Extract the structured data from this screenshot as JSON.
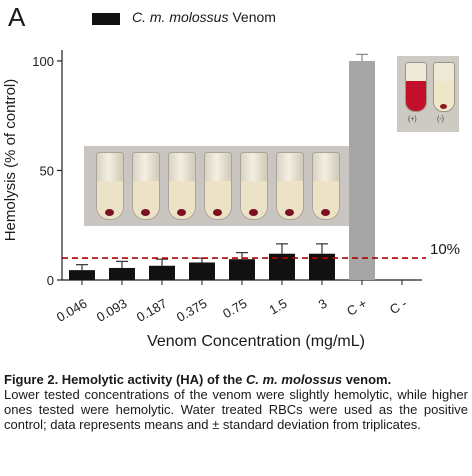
{
  "panel_label": "A",
  "legend": {
    "label_italic": "C. m. molossus",
    "label_rest": " Venom",
    "color": "#111111"
  },
  "threshold_label": "10%",
  "photo_controls": {
    "pos_label": "(+)",
    "neg_label": "(-)"
  },
  "caption": {
    "bold_prefix": "Figure 2. Hemolytic activity (HA) of the ",
    "bold_italic": "C. m. molossus",
    "bold_suffix": " venom.",
    "body": "Lower tested concentrations of the venom were slightly hemolytic, while higher ones tested were hemolytic. Water treated RBCs were used as the positive control; data represents means and ± standard deviation from triplicates."
  },
  "chart_data": {
    "type": "bar",
    "categories": [
      "0.046",
      "0.093",
      "0.187",
      "0.375",
      "0.75",
      "1.5",
      "3",
      "C +",
      "C -"
    ],
    "series": [
      {
        "name": "C. m. molossus Venom",
        "values": [
          4.5,
          5.5,
          6.5,
          8,
          9.5,
          12,
          12,
          null,
          0
        ],
        "errors": [
          2.5,
          3,
          3,
          2,
          3,
          4.5,
          4.5,
          null,
          0
        ],
        "color": "#111111"
      }
    ],
    "control": {
      "category": "C +",
      "value": 100,
      "error": 3,
      "color": "#a6a6a6"
    },
    "threshold": {
      "value": 10,
      "color": "#b00000"
    },
    "xlabel": "Venom Concentration (mg/mL)",
    "ylabel": "Hemolysis (% of control)",
    "ylim": [
      0,
      105
    ],
    "yticks": [
      0,
      50,
      100
    ],
    "grid": false,
    "legend_position": "top-left"
  }
}
